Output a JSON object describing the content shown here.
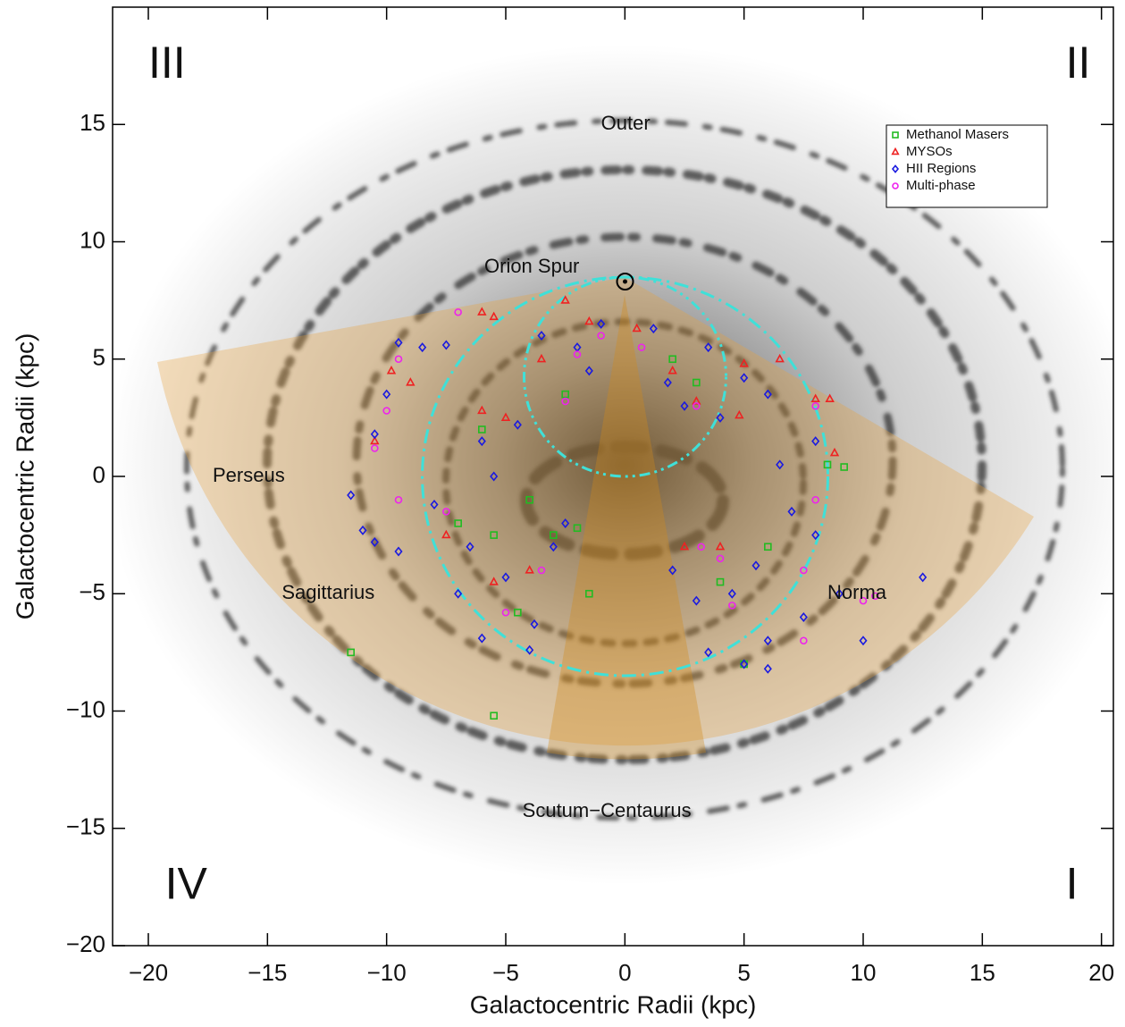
{
  "chart_data": {
    "type": "scatter",
    "xlabel": "Galactocentric Radii (kpc)",
    "ylabel": "Galactocentric Radii (kpc)",
    "xlim": [
      -21.5,
      20.5
    ],
    "ylim": [
      -20,
      20
    ],
    "xticks": [
      {
        "value": -20,
        "label": "−20"
      },
      {
        "value": -15,
        "label": "−15"
      },
      {
        "value": -10,
        "label": "−10"
      },
      {
        "value": -5,
        "label": "−5"
      },
      0,
      5,
      10,
      15,
      20
    ],
    "yticks": [
      {
        "value": -20,
        "label": "−20"
      },
      {
        "value": -15,
        "label": "−15"
      },
      {
        "value": -10,
        "label": "−10"
      },
      {
        "value": -5,
        "label": "−5"
      },
      0,
      5,
      10,
      15
    ],
    "legend": "upper right",
    "annotations": [
      {
        "text": "III",
        "x": -20,
        "y": 17.5,
        "size": "big"
      },
      {
        "text": "II",
        "x": 18.5,
        "y": 17.5,
        "size": "big"
      },
      {
        "text": "IV",
        "x": -19.3,
        "y": -17.5,
        "size": "big"
      },
      {
        "text": "I",
        "x": 18.5,
        "y": -17.5,
        "size": "big"
      },
      {
        "text": "Outer",
        "x": -1,
        "y": 15,
        "size": "normal"
      },
      {
        "text": "Orion Spur",
        "x": -5.9,
        "y": 8.9,
        "size": "normal"
      },
      {
        "text": "Perseus",
        "x": -17.3,
        "y": 0,
        "size": "normal"
      },
      {
        "text": "Sagittarius",
        "x": -14.4,
        "y": -5,
        "size": "normal"
      },
      {
        "text": "Norma",
        "x": 8.5,
        "y": -5,
        "size": "normal"
      },
      {
        "text": "Scutum−Centaurus",
        "x": -4.3,
        "y": -14.3,
        "size": "normal"
      }
    ],
    "series": [
      {
        "name": "Methanol Masers",
        "color": "#22bb22",
        "marker": "square",
        "x": [
          -11.5,
          -5.5,
          -6,
          -5.5,
          -3,
          -2,
          -4.5,
          -1.5,
          2,
          3,
          4,
          5,
          8.5,
          9.2,
          -2.5,
          -4,
          6,
          -7
        ],
        "values": [
          -7.5,
          -10.2,
          2,
          -2.5,
          -2.5,
          -2.2,
          -5.8,
          -5,
          5,
          4,
          -4.5,
          -8,
          0.5,
          0.4,
          3.5,
          -1,
          -3,
          -2
        ]
      },
      {
        "name": "MYSOs",
        "color": "#ee2222",
        "marker": "triangle",
        "x": [
          -6,
          -5.5,
          -2.5,
          -1.5,
          0.5,
          2,
          3,
          5,
          6.5,
          8,
          8.6,
          8.8,
          -10.5,
          -9,
          -6,
          -5,
          -7.5,
          -4,
          -5.5,
          4,
          2.5,
          -3.5,
          4.8,
          -9.8
        ],
        "values": [
          7,
          6.8,
          7.5,
          6.6,
          6.3,
          4.5,
          3.2,
          4.8,
          5,
          3.3,
          3.3,
          1,
          1.5,
          4,
          2.8,
          2.5,
          -2.5,
          -4,
          -4.5,
          -3,
          -3,
          5,
          2.6,
          4.5
        ]
      },
      {
        "name": "HII Regions",
        "color": "#1a1ae0",
        "marker": "diamond",
        "x": [
          -9.5,
          -8.5,
          -7.5,
          -10,
          -10.5,
          -11.5,
          -11,
          -10.5,
          -9.5,
          -7,
          -6,
          -5,
          -3.8,
          -4,
          -3,
          -2.5,
          -5.5,
          -6,
          -4.5,
          -3.5,
          -2,
          -1,
          1.2,
          2.5,
          3.5,
          4,
          5,
          6,
          6.5,
          7,
          8,
          5.5,
          4.5,
          3,
          2,
          6,
          7.5,
          9,
          12.5,
          10,
          5,
          6,
          3.5,
          -1.5,
          1.8,
          8,
          -8,
          -6.5
        ],
        "values": [
          5.7,
          5.5,
          5.6,
          3.5,
          1.8,
          -0.8,
          -2.3,
          -2.8,
          -3.2,
          -5,
          -6.9,
          -4.3,
          -6.3,
          -7.4,
          -3,
          -2,
          0,
          1.5,
          2.2,
          6,
          5.5,
          6.5,
          6.3,
          3,
          5.5,
          2.5,
          4.2,
          3.5,
          0.5,
          -1.5,
          -2.5,
          -3.8,
          -5,
          -5.3,
          -4,
          -7,
          -6,
          -5,
          -4.3,
          -7,
          -8,
          -8.2,
          -7.5,
          4.5,
          4,
          1.5,
          -1.2,
          -3
        ]
      },
      {
        "name": "Multi-phase",
        "color": "#ee22ee",
        "marker": "circle",
        "x": [
          -7,
          -9.5,
          -10,
          -10.5,
          -9.5,
          -7.5,
          -3.5,
          -1,
          -2.5,
          0.7,
          3,
          3.2,
          4,
          4.5,
          7.5,
          8,
          10.5,
          10,
          7.5,
          -5,
          8,
          -2
        ],
        "values": [
          7,
          5,
          2.8,
          1.2,
          -1,
          -1.5,
          -4,
          6,
          3.2,
          5.5,
          3,
          -3,
          -3.5,
          -5.5,
          -4,
          -1,
          -5.1,
          -5.3,
          -7,
          -5.8,
          3,
          5.2
        ]
      }
    ]
  }
}
